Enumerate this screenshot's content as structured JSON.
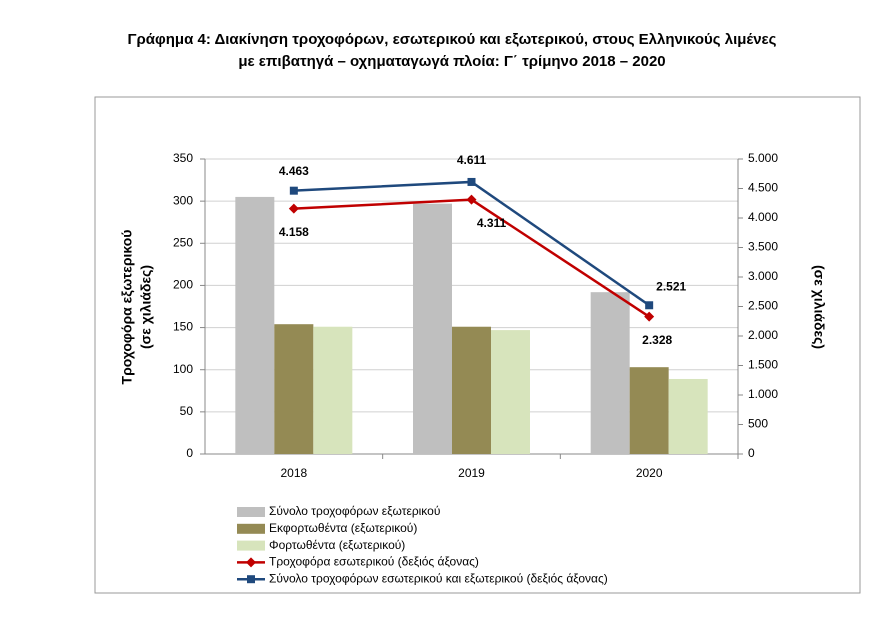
{
  "chart_data": {
    "type": "bar",
    "title": [
      "Γράφημα 4: Διακίνηση τροχοφόρων, εσωτερικού και εξωτερικού, στους Ελληνικούς λιμένες",
      "με επιβατηγά – οχηματαγωγά πλοία: Γ΄ τρίμηνο 2018 – 2020"
    ],
    "ylabel": [
      "Τροχοφόρα εξωτερικού",
      "(σε χιλιάδες)"
    ],
    "y2label": "(σε χιλιάδες)",
    "categories": [
      "2018",
      "2019",
      "2020"
    ],
    "series": [
      {
        "name": "Σύνολο τροχοφόρων εξωτερικού",
        "color": "#bfbfbf",
        "values": [
          305,
          297,
          192
        ]
      },
      {
        "name": "Εκφορτωθέντα (εξωτερικού)",
        "color": "#948a54",
        "values": [
          154,
          151,
          103
        ]
      },
      {
        "name": "Φορτωθέντα  (εξωτερικού)",
        "color": "#d7e4bc",
        "values": [
          151,
          147,
          89
        ]
      },
      {
        "name": "Τροχοφόρα εσωτερικού (δεξιός άξονας)",
        "type": "line",
        "axis": "y2",
        "marker": "diamond",
        "color": "#c00000",
        "values": [
          4158,
          4311,
          2328
        ],
        "value_labels": [
          "4.158",
          "4.311",
          "2.328"
        ]
      },
      {
        "name": "Σύνολο τροχοφόρων εσωτερικού και εξωτερικού (δεξιός άξονας)",
        "type": "line",
        "axis": "y2",
        "marker": "square",
        "color": "#1f497d",
        "values": [
          4463,
          4611,
          2521
        ],
        "value_labels": [
          "4.463",
          "4.611",
          "2.521"
        ]
      }
    ],
    "ylim": [
      0,
      350
    ],
    "yticks": [
      0,
      50,
      100,
      150,
      200,
      250,
      300,
      350
    ],
    "y2lim": [
      0,
      5000
    ],
    "y2ticks": [
      0,
      500,
      {
        "value": 1000,
        "label": "1.000"
      },
      {
        "value": 1500,
        "label": "1.500"
      },
      {
        "value": 2000,
        "label": "2.000"
      },
      {
        "value": 2500,
        "label": "2.500"
      },
      {
        "value": 3000,
        "label": "3.000"
      },
      {
        "value": 3500,
        "label": "3.500"
      },
      {
        "value": 4000,
        "label": "4.000"
      },
      {
        "value": 4500,
        "label": "4.500"
      },
      {
        "value": 5000,
        "label": "5.000"
      }
    ],
    "grid": true,
    "legend": "bottom"
  }
}
